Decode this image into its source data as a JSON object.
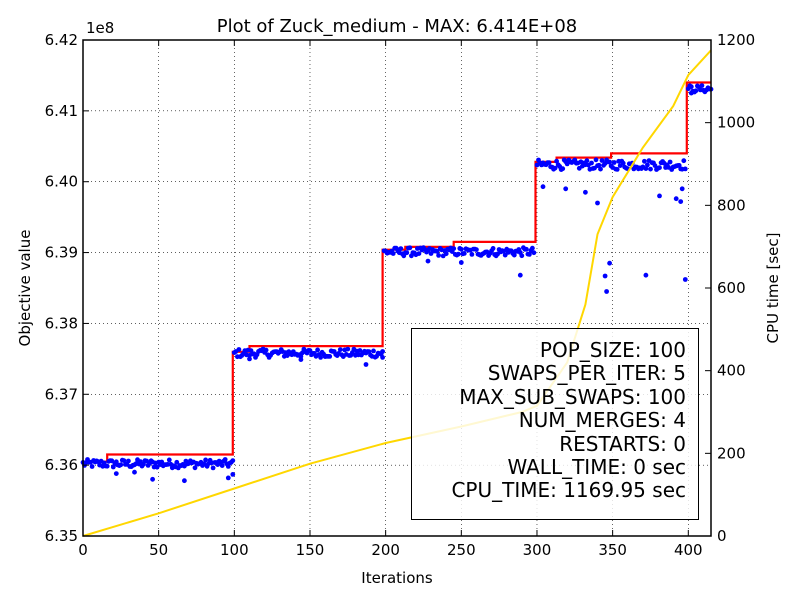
{
  "chart_data": {
    "type": "scatter",
    "title": "Plot of Zuck_medium - MAX: 6.414E+08",
    "xlabel": "Iterations",
    "ylabel": "Objective value",
    "y2label": "CPU time [sec]",
    "y_multiplier": "1e8",
    "xlim": [
      0,
      415
    ],
    "ylim": [
      635000000,
      642000000
    ],
    "y2lim": [
      0,
      1200
    ],
    "x_ticks": [
      "0",
      "50",
      "100",
      "150",
      "200",
      "250",
      "300",
      "350",
      "400"
    ],
    "y_ticks": [
      "6.35",
      "6.36",
      "6.37",
      "6.38",
      "6.39",
      "6.40",
      "6.41",
      "6.42"
    ],
    "y2_ticks": [
      "0",
      "200",
      "400",
      "600",
      "800",
      "1000",
      "1200"
    ],
    "grid": true,
    "series": [
      {
        "kind": "step-line",
        "color": "#ff0000",
        "points": [
          [
            0,
            636050000
          ],
          [
            16,
            636050000
          ],
          [
            16,
            636150000
          ],
          [
            99,
            636150000
          ],
          [
            99,
            637600000
          ],
          [
            110,
            637600000
          ],
          [
            110,
            637680000
          ],
          [
            198,
            637680000
          ],
          [
            198,
            639040000
          ],
          [
            213,
            639040000
          ],
          [
            213,
            639080000
          ],
          [
            245,
            639080000
          ],
          [
            245,
            639150000
          ],
          [
            299,
            639150000
          ],
          [
            299,
            640280000
          ],
          [
            313,
            640280000
          ],
          [
            313,
            640340000
          ],
          [
            349,
            640340000
          ],
          [
            349,
            640400000
          ],
          [
            399,
            640400000
          ],
          [
            399,
            641400000
          ],
          [
            415,
            641400000
          ]
        ]
      },
      {
        "kind": "scatter",
        "color": "#0000ff",
        "segments": [
          {
            "x": [
              0,
              99
            ],
            "y": 636020000,
            "spread": 60000,
            "outliers": [
              [
                22,
                635880000
              ],
              [
                46,
                635800000
              ],
              [
                67,
                635780000
              ],
              [
                96,
                635820000
              ],
              [
                99,
                635870000
              ],
              [
                34,
                635900000
              ]
            ]
          },
          {
            "x": [
              100,
              198
            ],
            "y": 637580000,
            "spread": 60000,
            "outliers": [
              [
                187,
                637420000
              ],
              [
                144,
                637490000
              ],
              [
                198,
                637520000
              ],
              [
                110,
                637500000
              ]
            ]
          },
          {
            "x": [
              199,
              298
            ],
            "y": 639010000,
            "spread": 60000,
            "outliers": [
              [
                289,
                638680000
              ],
              [
                250,
                638860000
              ],
              [
                228,
                638880000
              ]
            ]
          },
          {
            "x": [
              300,
              398
            ],
            "y": 640240000,
            "spread": 70000,
            "outliers": [
              [
                304,
                639930000
              ],
              [
                319,
                639900000
              ],
              [
                332,
                639850000
              ],
              [
                340,
                639700000
              ],
              [
                345,
                638670000
              ],
              [
                346,
                638450000
              ],
              [
                348,
                638850000
              ],
              [
                372,
                638680000
              ],
              [
                381,
                639800000
              ],
              [
                392,
                639760000
              ],
              [
                396,
                639900000
              ],
              [
                398,
                638620000
              ],
              [
                395,
                639720000
              ]
            ]
          },
          {
            "x": [
              400,
              415
            ],
            "y": 641310000,
            "spread": 50000,
            "outliers": [
              [
                402,
                641250000
              ]
            ]
          }
        ]
      },
      {
        "kind": "line",
        "axis": "y2",
        "color": "#ffd700",
        "points": [
          [
            0,
            0
          ],
          [
            50,
            55
          ],
          [
            100,
            115
          ],
          [
            150,
            175
          ],
          [
            200,
            225
          ],
          [
            250,
            265
          ],
          [
            290,
            300
          ],
          [
            300,
            315
          ],
          [
            320,
            420
          ],
          [
            332,
            560
          ],
          [
            340,
            730
          ],
          [
            350,
            820
          ],
          [
            370,
            940
          ],
          [
            390,
            1040
          ],
          [
            400,
            1115
          ],
          [
            415,
            1175
          ]
        ]
      }
    ],
    "text_box": [
      "POP_SIZE: 100",
      "SWAPS_PER_ITER: 5",
      "MAX_SUB_SWAPS: 100",
      "NUM_MERGES: 4",
      "RESTARTS: 0",
      "WALL_TIME: 0 sec",
      "CPU_TIME: 1169.95 sec"
    ]
  }
}
